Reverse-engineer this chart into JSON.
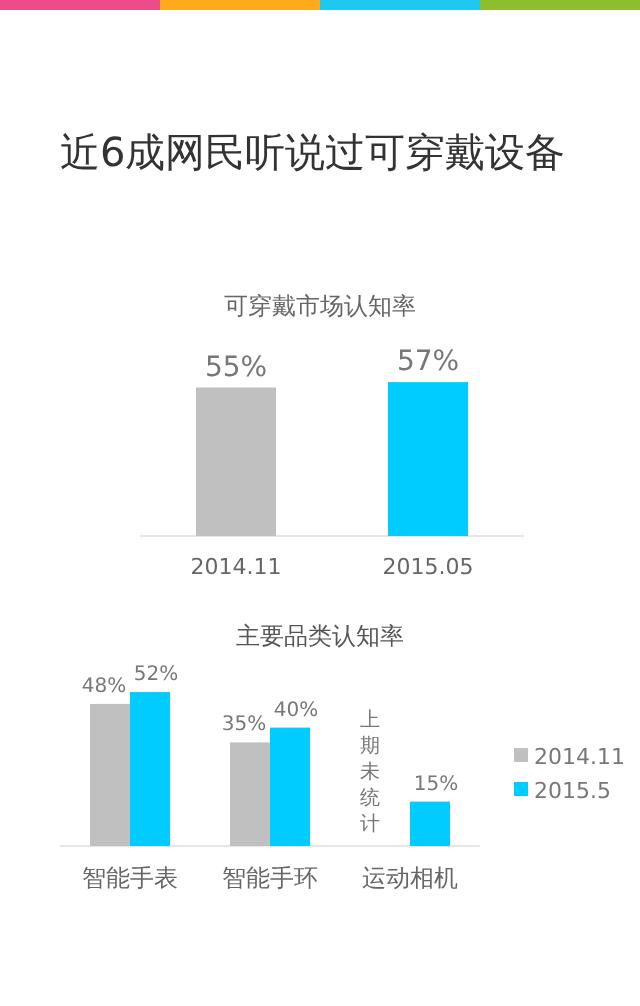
{
  "chart_data": [
    {
      "type": "bar",
      "title": "近6成网民听说过可穿戴设备",
      "subtitle": "可穿戴市场认知率",
      "categories": [
        "2014.11",
        "2015.05"
      ],
      "values": [
        55,
        57
      ],
      "colors": [
        "#c0c0c0",
        "#00ccff"
      ],
      "value_labels": [
        "55%",
        "57%"
      ],
      "legend": false
    },
    {
      "type": "bar",
      "title": "主要品类认知率",
      "categories": [
        "智能手表",
        "智能手环",
        "运动相机"
      ],
      "series": [
        {
          "name": "2014.11",
          "color": "#c0c0c0",
          "values": [
            48,
            35,
            null
          ],
          "value_labels": [
            "48%",
            "35%",
            null
          ]
        },
        {
          "name": "2015.5",
          "color": "#00ccff",
          "values": [
            52,
            40,
            15
          ],
          "value_labels": [
            "52%",
            "40%",
            "15%"
          ]
        }
      ],
      "annotations": [
        "上期未统计"
      ],
      "legend": "right"
    }
  ]
}
